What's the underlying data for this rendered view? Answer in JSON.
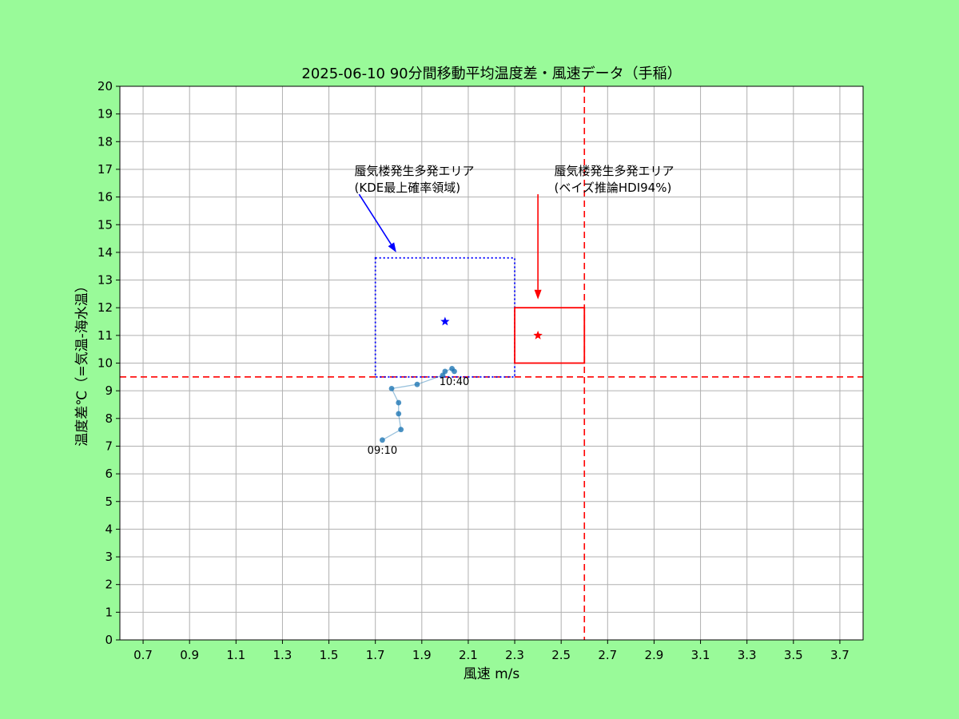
{
  "chart_data": {
    "type": "scatter",
    "title": "2025-06-10  90分間移動平均温度差・風速データ（手稲）",
    "xlabel": "風速 m/s",
    "ylabel": "温度差℃（=気温-海水温）",
    "xlim": [
      0.6,
      3.8
    ],
    "ylim": [
      0,
      20
    ],
    "xticks": [
      0.7,
      0.9,
      1.1,
      1.3,
      1.5,
      1.7,
      1.9,
      2.1,
      2.3,
      2.5,
      2.7,
      2.9,
      3.1,
      3.3,
      3.5,
      3.7
    ],
    "yticks": [
      0,
      1,
      2,
      3,
      4,
      5,
      6,
      7,
      8,
      9,
      10,
      11,
      12,
      13,
      14,
      15,
      16,
      17,
      18,
      19,
      20
    ],
    "grid": true,
    "series": [
      {
        "color": "#1f77b4",
        "points": [
          {
            "x": 1.73,
            "y": 7.22
          },
          {
            "x": 1.81,
            "y": 7.6
          },
          {
            "x": 1.8,
            "y": 8.17
          },
          {
            "x": 1.8,
            "y": 8.57
          },
          {
            "x": 1.77,
            "y": 9.08
          },
          {
            "x": 1.88,
            "y": 9.23
          },
          {
            "x": 1.99,
            "y": 9.56
          },
          {
            "x": 2.0,
            "y": 9.7
          },
          {
            "x": 2.03,
            "y": 9.8
          },
          {
            "x": 2.04,
            "y": 9.7
          }
        ]
      }
    ],
    "point_labels": [
      {
        "text": "09:10",
        "x": 1.73,
        "y": 7.22
      },
      {
        "text": "10:40",
        "x": 2.04,
        "y": 9.7
      }
    ],
    "reference_lines": [
      {
        "orientation": "horizontal",
        "value": 9.5,
        "color": "#ff0000",
        "style": "dashed"
      },
      {
        "orientation": "vertical",
        "value": 2.6,
        "color": "#ff0000",
        "style": "dashed"
      }
    ],
    "regions": [
      {
        "name": "kde",
        "x0": 1.7,
        "x1": 2.3,
        "y0": 9.5,
        "y1": 13.8,
        "color": "#0000ff",
        "style": "dotted",
        "star": {
          "x": 2.0,
          "y": 11.5
        },
        "annotation": {
          "lines": [
            "蜃気楼発生多発エリア",
            "(KDE最上確率領域)"
          ],
          "text_x": 1.61,
          "text_y": 16.8,
          "arrow_from": [
            1.63,
            16.1
          ],
          "arrow_to": [
            1.79,
            14.0
          ]
        }
      },
      {
        "name": "hdi",
        "x0": 2.3,
        "x1": 2.6,
        "y0": 10.0,
        "y1": 12.0,
        "color": "#ff0000",
        "style": "solid",
        "star": {
          "x": 2.4,
          "y": 11.0
        },
        "annotation": {
          "lines": [
            "蜃気楼発生多発エリア",
            "(ベイズ推論HDI94%)"
          ],
          "text_x": 2.47,
          "text_y": 16.8,
          "arrow_from": [
            2.4,
            16.1
          ],
          "arrow_to": [
            2.4,
            12.3
          ]
        }
      }
    ]
  }
}
